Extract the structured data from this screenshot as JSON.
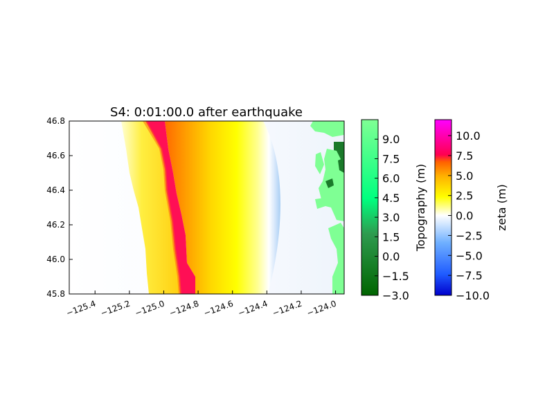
{
  "chart_data": {
    "type": "heatmap",
    "title": "S4: 0:01:00.0 after earthquake",
    "xlim": [
      -125.55,
      -123.95
    ],
    "ylim": [
      45.8,
      46.8
    ],
    "x_ticks": [
      {
        "value": -125.4,
        "label": "−125.4"
      },
      {
        "value": -125.2,
        "label": "−125.2"
      },
      {
        "value": -125.0,
        "label": "−125.0"
      },
      {
        "value": -124.8,
        "label": "−124.8"
      },
      {
        "value": -124.6,
        "label": "−124.6"
      },
      {
        "value": -124.4,
        "label": "−124.4"
      },
      {
        "value": -124.2,
        "label": "−124.2"
      },
      {
        "value": -124.0,
        "label": "−124.0"
      }
    ],
    "y_ticks": [
      {
        "value": 45.8,
        "label": "45.8"
      },
      {
        "value": 46.0,
        "label": "46.0"
      },
      {
        "value": 46.2,
        "label": "46.2"
      },
      {
        "value": 46.4,
        "label": "46.4"
      },
      {
        "value": 46.6,
        "label": "46.6"
      },
      {
        "value": 46.8,
        "label": "46.8"
      }
    ],
    "field_zeta_m": {
      "bands": [
        {
          "name": "wave front (yellow)",
          "lon_start": -125.22,
          "lon_end": -125.13,
          "zeta": 2.0
        },
        {
          "name": "peak crest",
          "lon_start": -125.05,
          "lon_end": -124.86,
          "zeta": 9.0
        },
        {
          "name": "trailing orange",
          "lon_start": -124.86,
          "lon_end": -124.65,
          "zeta": 6.0
        },
        {
          "name": "trailing yellow",
          "lon_start": -124.65,
          "lon_end": -124.45,
          "zeta": 3.0
        },
        {
          "name": "drawdown (blue)",
          "lon_start": -124.35,
          "lon_end": -123.95,
          "zeta": -1.5
        }
      ]
    },
    "colorbars": [
      {
        "label": "Topography (m)",
        "ticks": [
          "9.0",
          "7.5",
          "6.0",
          "4.5",
          "3.0",
          "1.5",
          "0.0",
          "−1.5",
          "−3.0"
        ],
        "range": [
          -3.0,
          10.5
        ],
        "colors": [
          "#006400",
          "#3cb371",
          "#00ff7f",
          "#7fff94"
        ]
      },
      {
        "label": "zeta (m)",
        "ticks": [
          "10.0",
          "7.5",
          "5.0",
          "2.5",
          "0.0",
          "−2.5",
          "−5.0",
          "−7.5",
          "−10.0"
        ],
        "range": [
          -10.0,
          12.0
        ],
        "colors": [
          "#0000cc",
          "#1f5bff",
          "#6fb0ff",
          "#ffffff",
          "#ffff00",
          "#ffb000",
          "#ff6000",
          "#ff0050",
          "#ff00ff"
        ]
      }
    ]
  }
}
